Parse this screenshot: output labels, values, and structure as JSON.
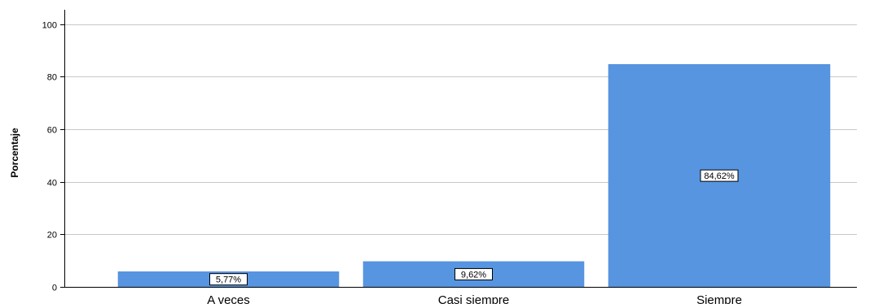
{
  "chart_data": {
    "type": "bar",
    "categories": [
      "A veces",
      "Casi siempre",
      "Siempre"
    ],
    "values": [
      5.77,
      9.62,
      84.62
    ],
    "data_labels": [
      "5,77%",
      "9,62%",
      "84,62%"
    ],
    "ylabel": "Porcentaje",
    "xlabel": "",
    "ylim": [
      0,
      104
    ],
    "yticks": [
      0,
      20,
      40,
      60,
      80,
      100
    ],
    "ytick_labels": [
      "0",
      "20",
      "40",
      "60",
      "80",
      "100"
    ],
    "grid": "horizontal",
    "colors": {
      "bar": "#5795e1",
      "bar_edge": "#4a86d4",
      "grid": "#c8c8c8",
      "axis": "#000000",
      "label_box": "#ffffff"
    }
  }
}
